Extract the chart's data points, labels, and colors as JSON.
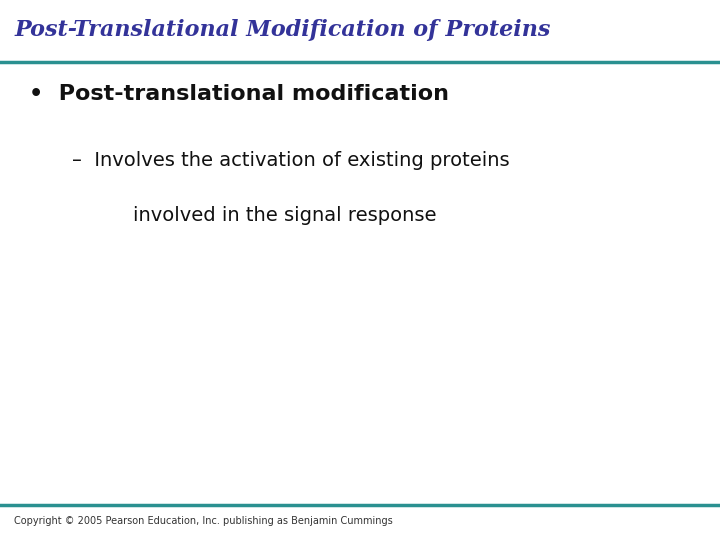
{
  "title": "Post-Translational Modification of Proteins",
  "title_color": "#333399",
  "title_fontsize": 16,
  "title_style": "italic",
  "title_weight": "bold",
  "title_font": "serif",
  "separator_color": "#2a9090",
  "separator_linewidth": 2.5,
  "bullet_text": "Post-translational modification",
  "bullet_fontsize": 16,
  "bullet_weight": "bold",
  "bullet_color": "#111111",
  "bullet_font": "sans-serif",
  "sub_bullet_line1": "Involves the activation of existing proteins",
  "sub_bullet_line2": "involved in the signal response",
  "sub_bullet_fontsize": 14,
  "sub_bullet_color": "#111111",
  "sub_bullet_font": "sans-serif",
  "copyright": "Copyright © 2005 Pearson Education, Inc. publishing as Benjamin Cummings",
  "copyright_fontsize": 7,
  "copyright_color": "#333333",
  "background_color": "#ffffff",
  "dash_char": "–"
}
